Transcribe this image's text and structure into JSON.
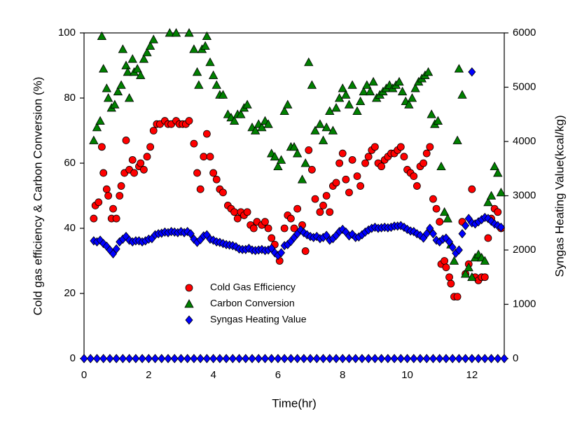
{
  "chart_data": {
    "type": "scatter",
    "xlabel": "Time(hr)",
    "ylabel": "Cold gas efficiency & Carbon Conversion (%)",
    "y2label": "Syngas Heating Value(kcal/kg)",
    "xlim": [
      0,
      13
    ],
    "xticks": [
      0,
      2,
      4,
      6,
      8,
      10,
      12
    ],
    "ylim": [
      0,
      100
    ],
    "yticks": [
      0,
      20,
      40,
      60,
      80,
      100
    ],
    "y2lim": [
      0,
      6000
    ],
    "y2ticks": [
      0,
      1000,
      2000,
      3000,
      4000,
      5000,
      6000
    ],
    "legend": "lower-center",
    "series": [
      {
        "name": "Cold Gas Efficiency",
        "color": "#ff0000",
        "marker": "circle",
        "x": [
          0.3,
          0.35,
          0.45,
          0.55,
          0.6,
          0.7,
          0.75,
          0.85,
          0.9,
          1.0,
          1.1,
          1.15,
          1.25,
          1.3,
          1.4,
          1.5,
          1.55,
          1.7,
          1.75,
          1.85,
          1.95,
          2.05,
          2.15,
          2.25,
          2.35,
          2.5,
          2.6,
          2.7,
          2.85,
          2.95,
          3.05,
          3.15,
          3.25,
          3.4,
          3.5,
          3.6,
          3.7,
          3.8,
          3.9,
          4.0,
          4.1,
          4.2,
          4.3,
          4.45,
          4.55,
          4.65,
          4.75,
          4.85,
          4.95,
          5.05,
          5.15,
          5.25,
          5.35,
          5.5,
          5.6,
          5.7,
          5.8,
          5.9,
          6.05,
          6.2,
          6.3,
          6.4,
          6.5,
          6.6,
          6.75,
          6.85,
          6.95,
          7.05,
          7.15,
          7.3,
          7.4,
          7.5,
          7.6,
          7.7,
          7.8,
          7.9,
          8.0,
          8.1,
          8.2,
          8.3,
          8.45,
          8.55,
          8.7,
          8.8,
          8.9,
          9.0,
          9.1,
          9.2,
          9.3,
          9.4,
          9.5,
          9.6,
          9.7,
          9.8,
          9.9,
          10.0,
          10.1,
          10.2,
          10.3,
          10.4,
          10.5,
          10.6,
          10.7,
          10.8,
          10.9,
          11.0,
          11.05,
          11.15,
          11.2,
          11.3,
          11.35,
          11.45,
          11.55,
          11.7,
          11.8,
          11.9,
          12.0,
          12.1,
          12.2,
          12.3,
          12.4,
          12.5,
          12.6,
          12.7,
          12.8,
          12.9
        ],
        "values": [
          43,
          47,
          48,
          65,
          57,
          52,
          50,
          43,
          46,
          43,
          50,
          53,
          57,
          67,
          58,
          61,
          57,
          59,
          60,
          58,
          62,
          65,
          70,
          72,
          72,
          73,
          72,
          72,
          73,
          72,
          72,
          72,
          73,
          66,
          57,
          52,
          62,
          69,
          62,
          57,
          55,
          52,
          51,
          47,
          46,
          45,
          43,
          45,
          44,
          45,
          41,
          40,
          42,
          41,
          42,
          40,
          37,
          35,
          30,
          40,
          44,
          43,
          40,
          46,
          41,
          33,
          64,
          58,
          49,
          45,
          47,
          50,
          45,
          53,
          54,
          60,
          63,
          55,
          51,
          61,
          56,
          53,
          60,
          62,
          64,
          65,
          60,
          59,
          61,
          62,
          63,
          63,
          64,
          65,
          62,
          58,
          57,
          56,
          53,
          59,
          60,
          63,
          65,
          49,
          46,
          42,
          29,
          30,
          28,
          25,
          23,
          19,
          19,
          42,
          26,
          29,
          52,
          25,
          24,
          25,
          25,
          37,
          43,
          46,
          45,
          40
        ]
      },
      {
        "name": "Carbon Conversion",
        "color": "#008000",
        "marker": "triangle",
        "x": [
          0.3,
          0.4,
          0.5,
          0.55,
          0.6,
          0.7,
          0.75,
          0.85,
          0.95,
          1.05,
          1.15,
          1.2,
          1.3,
          1.35,
          1.4,
          1.5,
          1.55,
          1.65,
          1.75,
          1.85,
          1.95,
          2.05,
          2.15,
          2.65,
          2.85,
          3.25,
          3.4,
          3.5,
          3.55,
          3.65,
          3.75,
          3.8,
          3.9,
          4.0,
          4.1,
          4.2,
          4.3,
          4.45,
          4.55,
          4.65,
          4.75,
          4.85,
          4.95,
          5.05,
          5.2,
          5.3,
          5.4,
          5.5,
          5.6,
          5.7,
          5.8,
          5.9,
          6.0,
          6.1,
          6.2,
          6.3,
          6.4,
          6.5,
          6.6,
          6.75,
          6.85,
          6.95,
          7.05,
          7.15,
          7.3,
          7.4,
          7.5,
          7.6,
          7.7,
          7.8,
          7.9,
          8.0,
          8.1,
          8.2,
          8.3,
          8.45,
          8.55,
          8.65,
          8.75,
          8.85,
          8.95,
          9.05,
          9.15,
          9.25,
          9.35,
          9.45,
          9.55,
          9.65,
          9.75,
          9.85,
          9.95,
          10.05,
          10.15,
          10.25,
          10.35,
          10.45,
          10.55,
          10.65,
          10.75,
          10.85,
          10.95,
          11.05,
          11.15,
          11.25,
          11.35,
          11.45,
          11.55,
          11.6,
          11.7,
          11.8,
          11.9,
          12.0,
          12.1,
          12.2,
          12.3,
          12.4,
          12.5,
          12.6,
          12.7,
          12.8,
          12.9
        ],
        "values": [
          67,
          71,
          73,
          99,
          89,
          83,
          80,
          77,
          78,
          82,
          84,
          95,
          90,
          88,
          80,
          92,
          88,
          89,
          87,
          92,
          94,
          96,
          98,
          100,
          100,
          100,
          95,
          88,
          84,
          95,
          96,
          99,
          91,
          87,
          84,
          81,
          81,
          75,
          74,
          73,
          75,
          75,
          77,
          78,
          71,
          70,
          72,
          71,
          73,
          72,
          63,
          62,
          59,
          61,
          76,
          78,
          65,
          65,
          63,
          55,
          60,
          91,
          84,
          70,
          72,
          67,
          71,
          76,
          70,
          77,
          80,
          83,
          81,
          78,
          84,
          76,
          79,
          82,
          84,
          82,
          85,
          80,
          81,
          82,
          83,
          84,
          83,
          84,
          85,
          82,
          79,
          78,
          80,
          83,
          85,
          86,
          87,
          88,
          75,
          72,
          73,
          59,
          45,
          43,
          35,
          30,
          67,
          89,
          81,
          26,
          28,
          25,
          31,
          32,
          31,
          30,
          48,
          50,
          59,
          57,
          51
        ]
      },
      {
        "name": "Syngas Heating Value",
        "color": "#0000ff",
        "marker": "diamond",
        "axis": "y2",
        "x": [
          0.3,
          0.4,
          0.5,
          0.6,
          0.7,
          0.8,
          0.9,
          1.0,
          1.1,
          1.2,
          1.3,
          1.4,
          1.5,
          1.6,
          1.7,
          1.8,
          1.9,
          2.0,
          2.1,
          2.2,
          2.3,
          2.4,
          2.5,
          2.6,
          2.7,
          2.8,
          2.9,
          3.0,
          3.1,
          3.2,
          3.3,
          3.4,
          3.5,
          3.6,
          3.7,
          3.8,
          3.9,
          4.0,
          4.1,
          4.2,
          4.3,
          4.4,
          4.5,
          4.6,
          4.7,
          4.8,
          4.9,
          5.0,
          5.1,
          5.2,
          5.3,
          5.4,
          5.5,
          5.6,
          5.7,
          5.8,
          5.9,
          6.0,
          6.1,
          6.2,
          6.3,
          6.4,
          6.5,
          6.6,
          6.7,
          6.8,
          6.9,
          7.0,
          7.1,
          7.2,
          7.3,
          7.4,
          7.5,
          7.6,
          7.7,
          7.8,
          7.9,
          8.0,
          8.1,
          8.2,
          8.3,
          8.4,
          8.5,
          8.6,
          8.7,
          8.8,
          8.9,
          9.0,
          9.1,
          9.2,
          9.3,
          9.4,
          9.5,
          9.6,
          9.7,
          9.8,
          9.9,
          10.0,
          10.1,
          10.2,
          10.3,
          10.4,
          10.5,
          10.6,
          10.7,
          10.8,
          10.9,
          11.0,
          11.1,
          11.2,
          11.3,
          11.4,
          11.5,
          11.6,
          11.7,
          11.8,
          11.9,
          12.0,
          12.1,
          12.2,
          12.3,
          12.4,
          12.5,
          12.6,
          12.7,
          12.8,
          12.9,
          12.0,
          0,
          0.2,
          0.4,
          0.6,
          0.8,
          1,
          1.2,
          1.4,
          1.6,
          1.8,
          2,
          2.2,
          2.4,
          2.6,
          2.8,
          3,
          3.2,
          3.4,
          3.6,
          3.8,
          4,
          4.2,
          4.4,
          4.6,
          4.8,
          5,
          5.2,
          5.4,
          5.6,
          5.8,
          6,
          6.2,
          6.4,
          6.6,
          6.8,
          7,
          7.2,
          7.4,
          7.6,
          7.8,
          8,
          8.2,
          8.4,
          8.6,
          8.8,
          9,
          9.2,
          9.4,
          9.6,
          9.8,
          10,
          10.2,
          10.4,
          10.6,
          10.8,
          11,
          11.2,
          11.4,
          11.6,
          11.8,
          12,
          12.2,
          12.4,
          12.6,
          12.8,
          13
        ],
        "values": [
          2170,
          2150,
          2180,
          2120,
          2070,
          2000,
          1930,
          2020,
          2150,
          2200,
          2250,
          2180,
          2150,
          2170,
          2170,
          2150,
          2170,
          2200,
          2210,
          2280,
          2300,
          2310,
          2330,
          2320,
          2340,
          2330,
          2320,
          2340,
          2320,
          2340,
          2300,
          2200,
          2140,
          2190,
          2260,
          2280,
          2200,
          2180,
          2150,
          2140,
          2120,
          2100,
          2090,
          2080,
          2060,
          2020,
          2010,
          2010,
          2030,
          2000,
          1990,
          2000,
          2010,
          1990,
          2000,
          2030,
          1950,
          1900,
          1950,
          2080,
          2100,
          2160,
          2230,
          2300,
          2370,
          2320,
          2280,
          2250,
          2230,
          2250,
          2210,
          2230,
          2270,
          2180,
          2210,
          2270,
          2340,
          2380,
          2330,
          2260,
          2290,
          2230,
          2240,
          2280,
          2330,
          2370,
          2400,
          2420,
          2400,
          2410,
          2420,
          2410,
          2420,
          2440,
          2440,
          2450,
          2420,
          2380,
          2350,
          2340,
          2300,
          2270,
          2220,
          2300,
          2400,
          2300,
          2180,
          2150,
          2200,
          2220,
          2150,
          2050,
          1940,
          2000,
          2300,
          2450,
          2580,
          2500,
          2480,
          2520,
          2560,
          2600,
          2580,
          2530,
          2480,
          2450,
          2420,
          5280,
          0,
          0,
          0,
          0,
          0,
          0,
          0,
          0,
          0,
          0,
          0,
          0,
          0,
          0,
          0,
          0,
          0,
          0,
          0,
          0,
          0,
          0,
          0,
          0,
          0,
          0,
          0,
          0,
          0,
          0,
          0,
          0,
          0,
          0,
          0,
          0,
          0,
          0,
          0,
          0,
          0,
          0,
          0,
          0,
          0,
          0,
          0,
          0,
          0,
          0,
          0,
          0,
          0,
          0,
          0,
          0,
          0,
          0,
          0,
          0,
          0,
          0,
          0,
          0,
          0,
          0
        ]
      }
    ]
  }
}
